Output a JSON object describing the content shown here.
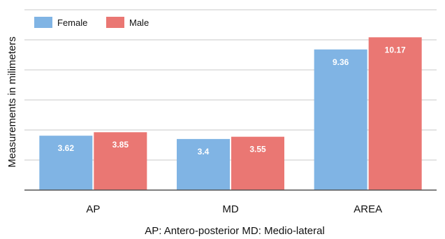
{
  "chart_data": {
    "type": "bar",
    "categories": [
      "AP",
      "MD",
      "AREA"
    ],
    "series": [
      {
        "name": "Female",
        "values": [
          3.62,
          3.4,
          9.36
        ],
        "labels": [
          "3.62",
          "3.4",
          "9.36"
        ],
        "color": "#80b4e4"
      },
      {
        "name": "Male",
        "values": [
          3.85,
          3.55,
          10.17
        ],
        "labels": [
          "3.85",
          "3.55",
          "10.17"
        ],
        "color": "#ea7773"
      }
    ],
    "ylabel": "Measurements in milimeters",
    "xlabel": "AP: Antero-posterior  MD: Medio-lateral",
    "ylim": [
      0,
      12
    ],
    "yticks": [
      0,
      2,
      4,
      6,
      8,
      10,
      12
    ],
    "grid": true,
    "legend": "top-left"
  }
}
